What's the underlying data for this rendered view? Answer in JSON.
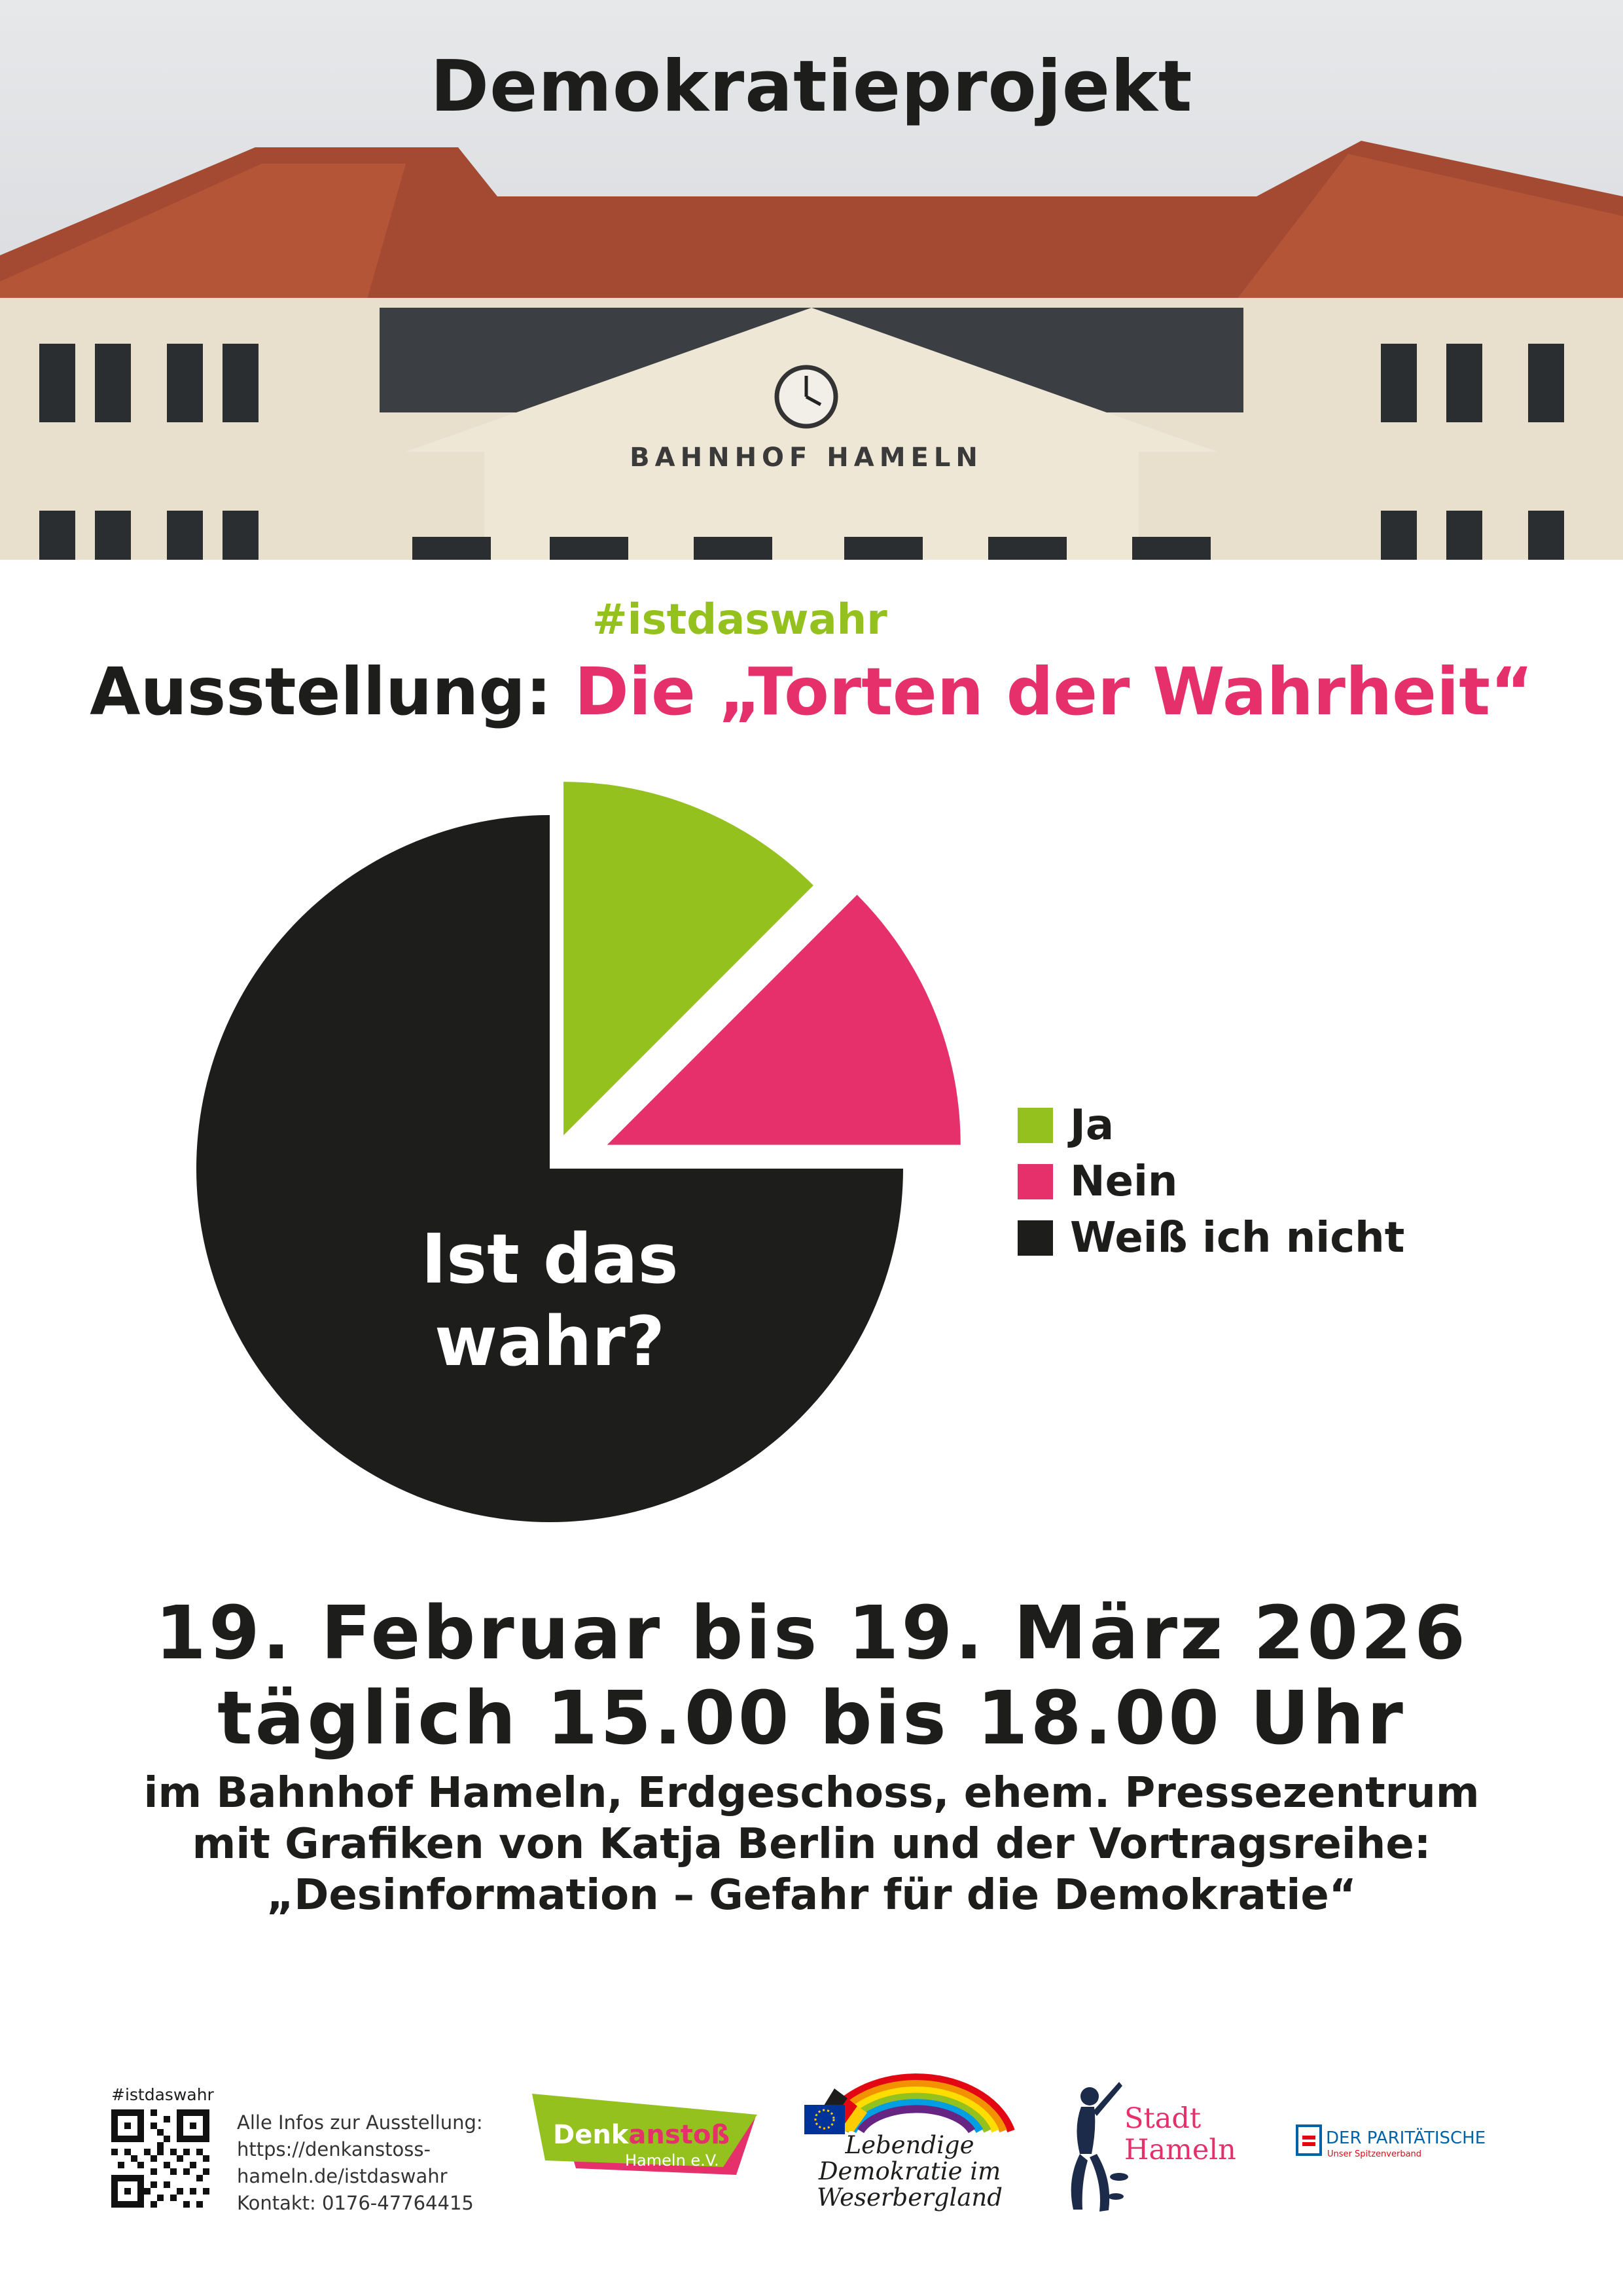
{
  "colors": {
    "green": "#95c11f",
    "pink": "#e5306b",
    "black": "#1d1d1b"
  },
  "hero": {
    "title": "Demokratieprojekt",
    "building_sign": "BAHNHOF HAMELN"
  },
  "hashtag": "#istdaswahr",
  "headline": {
    "prefix": "Ausstellung:",
    "highlight": "Die „Torten der Wahrheit“"
  },
  "chart_data": {
    "type": "pie",
    "center_text": [
      "Ist das",
      "wahr?"
    ],
    "categories": [
      "Ja",
      "Nein",
      "Weiß ich nicht"
    ],
    "values": [
      12.5,
      12.5,
      75
    ],
    "colors": [
      "#95c11f",
      "#e5306b",
      "#1d1d1b"
    ],
    "legend_position": "right"
  },
  "event": {
    "dates": "19. Februar bis 19. März 2026",
    "times": "täglich 15.00 bis 18.00 Uhr",
    "details": [
      "im Bahnhof Hameln, Erdgeschoss, ehem. Pressezentrum",
      "mit Grafiken von Katja Berlin und der Vortragsreihe:",
      "„Desinformation – Gefahr für die Demokratie“"
    ]
  },
  "footer": {
    "qr_hashtag": "#istdaswahr",
    "info_lines": [
      "Alle Infos zur Ausstellung:",
      "https://denkanstoss-",
      "hameln.de/istdaswahr",
      "Kontakt: 0176-47764415"
    ],
    "logos": {
      "denkanstoss": {
        "name_a": "Denk",
        "name_b": "anstoß",
        "sub": "Hameln e.V."
      },
      "lebendige": [
        "Lebendige",
        "Demokratie im",
        "Weserbergland"
      ],
      "stadt_hameln": [
        "Stadt",
        "Hameln"
      ],
      "paritaetische": {
        "name": "DER PARITÄTISCHE",
        "sub": "Unser Spitzenverband"
      }
    }
  }
}
